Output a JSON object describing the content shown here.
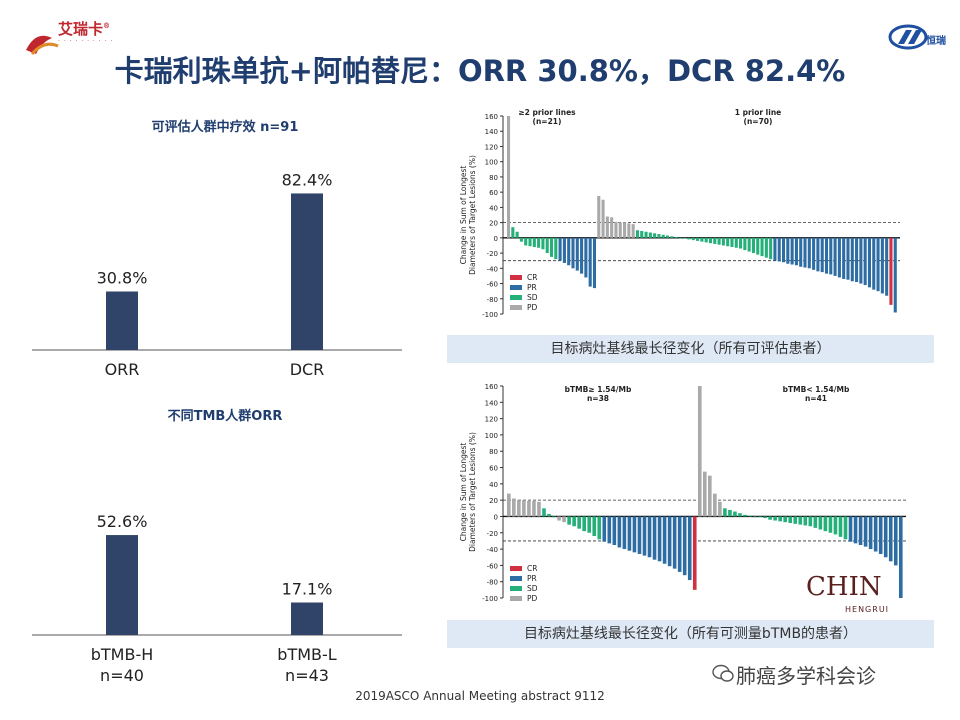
{
  "header": {
    "title": "卡瑞利珠单抗+阿帕替尼：ORR 30.8%，DCR 82.4%",
    "logo_left_text": "艾瑞卡",
    "logo_left_mark": "®",
    "logo_right_text": "恒瑞"
  },
  "colors": {
    "bar": "#2f4468",
    "cr": "#d03040",
    "pr": "#2e6da4",
    "sd": "#25b07a",
    "pd": "#a9a9a9",
    "title": "#1f3d6e"
  },
  "chart_data": [
    {
      "id": "orr_dcr",
      "type": "bar",
      "title": "可评估人群中疗效 n=91",
      "categories": [
        "ORR",
        "DCR"
      ],
      "values": [
        30.8,
        82.4
      ],
      "value_labels": [
        "30.8%",
        "82.4%"
      ],
      "ylim": [
        0,
        100
      ]
    },
    {
      "id": "tmb_orr",
      "type": "bar",
      "title": "不同TMB人群ORR",
      "categories": [
        "bTMB-H",
        "bTMB-L"
      ],
      "category_sublabels": [
        "n=40",
        "n=43"
      ],
      "values": [
        52.6,
        17.1
      ],
      "value_labels": [
        "52.6%",
        "17.1%"
      ],
      "ylim": [
        0,
        100
      ]
    },
    {
      "id": "waterfall_all",
      "type": "bar",
      "subtype": "waterfall",
      "ylabel": "Change in Sum of Longest Diameters of Target Lesions (%)",
      "ylim": [
        -100,
        160
      ],
      "yticks": [
        160,
        140,
        120,
        100,
        80,
        60,
        40,
        20,
        0,
        -20,
        -40,
        -60,
        -80,
        -100
      ],
      "reference_lines": [
        20,
        -30
      ],
      "groups": [
        {
          "label": "≥2 prior lines",
          "n_label": "(n=21)"
        },
        {
          "label": "1 prior line",
          "n_label": "(n=70)"
        }
      ],
      "legend": [
        "CR",
        "PR",
        "SD",
        "PD"
      ],
      "caption": "目标病灶基线最长径变化（所有可评估患者）",
      "group1": [
        {
          "v": 160,
          "c": "PD"
        },
        {
          "v": 14,
          "c": "SD"
        },
        {
          "v": 8,
          "c": "SD"
        },
        {
          "v": -5,
          "c": "SD"
        },
        {
          "v": -10,
          "c": "SD"
        },
        {
          "v": -11,
          "c": "SD"
        },
        {
          "v": -12,
          "c": "SD"
        },
        {
          "v": -13,
          "c": "SD"
        },
        {
          "v": -15,
          "c": "SD"
        },
        {
          "v": -20,
          "c": "SD"
        },
        {
          "v": -25,
          "c": "SD"
        },
        {
          "v": -28,
          "c": "SD"
        },
        {
          "v": -30,
          "c": "PR"
        },
        {
          "v": -33,
          "c": "PR"
        },
        {
          "v": -36,
          "c": "PR"
        },
        {
          "v": -40,
          "c": "PR"
        },
        {
          "v": -43,
          "c": "PR"
        },
        {
          "v": -47,
          "c": "PR"
        },
        {
          "v": -52,
          "c": "PR"
        },
        {
          "v": -64,
          "c": "PR"
        },
        {
          "v": -66,
          "c": "PR"
        }
      ],
      "group2": [
        {
          "v": 55,
          "c": "PD"
        },
        {
          "v": 50,
          "c": "PD"
        },
        {
          "v": 28,
          "c": "PD"
        },
        {
          "v": 27,
          "c": "PD"
        },
        {
          "v": 21,
          "c": "PD"
        },
        {
          "v": 20,
          "c": "PD"
        },
        {
          "v": 20,
          "c": "PD"
        },
        {
          "v": 19,
          "c": "PD"
        },
        {
          "v": 18,
          "c": "PD"
        },
        {
          "v": 10,
          "c": "SD"
        },
        {
          "v": 9,
          "c": "SD"
        },
        {
          "v": 8,
          "c": "SD"
        },
        {
          "v": 7,
          "c": "SD"
        },
        {
          "v": 6,
          "c": "SD"
        },
        {
          "v": 5,
          "c": "SD"
        },
        {
          "v": 4,
          "c": "SD"
        },
        {
          "v": 3,
          "c": "SD"
        },
        {
          "v": 2,
          "c": "SD"
        },
        {
          "v": 1,
          "c": "SD"
        },
        {
          "v": 0,
          "c": "SD"
        },
        {
          "v": -1,
          "c": "SD"
        },
        {
          "v": -2,
          "c": "SD"
        },
        {
          "v": -3,
          "c": "SD"
        },
        {
          "v": -4,
          "c": "SD"
        },
        {
          "v": -5,
          "c": "SD"
        },
        {
          "v": -6,
          "c": "SD"
        },
        {
          "v": -7,
          "c": "SD"
        },
        {
          "v": -8,
          "c": "SD"
        },
        {
          "v": -9,
          "c": "SD"
        },
        {
          "v": -10,
          "c": "SD"
        },
        {
          "v": -11,
          "c": "SD"
        },
        {
          "v": -12,
          "c": "SD"
        },
        {
          "v": -13,
          "c": "SD"
        },
        {
          "v": -14,
          "c": "SD"
        },
        {
          "v": -16,
          "c": "SD"
        },
        {
          "v": -18,
          "c": "SD"
        },
        {
          "v": -20,
          "c": "SD"
        },
        {
          "v": -22,
          "c": "SD"
        },
        {
          "v": -24,
          "c": "SD"
        },
        {
          "v": -26,
          "c": "SD"
        },
        {
          "v": -28,
          "c": "SD"
        },
        {
          "v": -30,
          "c": "PR"
        },
        {
          "v": -31,
          "c": "PR"
        },
        {
          "v": -32,
          "c": "PR"
        },
        {
          "v": -34,
          "c": "PR"
        },
        {
          "v": -35,
          "c": "PR"
        },
        {
          "v": -36,
          "c": "PR"
        },
        {
          "v": -38,
          "c": "PR"
        },
        {
          "v": -39,
          "c": "PR"
        },
        {
          "v": -40,
          "c": "PR"
        },
        {
          "v": -42,
          "c": "PR"
        },
        {
          "v": -44,
          "c": "PR"
        },
        {
          "v": -45,
          "c": "PR"
        },
        {
          "v": -47,
          "c": "PR"
        },
        {
          "v": -48,
          "c": "PR"
        },
        {
          "v": -50,
          "c": "PR"
        },
        {
          "v": -52,
          "c": "PR"
        },
        {
          "v": -54,
          "c": "PR"
        },
        {
          "v": -55,
          "c": "PR"
        },
        {
          "v": -57,
          "c": "PR"
        },
        {
          "v": -58,
          "c": "PR"
        },
        {
          "v": -60,
          "c": "PR"
        },
        {
          "v": -62,
          "c": "PR"
        },
        {
          "v": -65,
          "c": "PR"
        },
        {
          "v": -68,
          "c": "PR"
        },
        {
          "v": -70,
          "c": "PR"
        },
        {
          "v": -73,
          "c": "PR"
        },
        {
          "v": -76,
          "c": "PR"
        },
        {
          "v": -88,
          "c": "CR"
        },
        {
          "v": -98,
          "c": "PR"
        }
      ]
    },
    {
      "id": "waterfall_tmb",
      "type": "bar",
      "subtype": "waterfall",
      "ylabel": "Change in Sum of Longest Diameters of Target Lesions (%)",
      "ylim": [
        -100,
        160
      ],
      "yticks": [
        160,
        140,
        120,
        100,
        80,
        60,
        40,
        20,
        0,
        -20,
        -40,
        -60,
        -80,
        -100
      ],
      "reference_lines": [
        20,
        -30
      ],
      "groups": [
        {
          "label": "bTMB≥ 1.54/Mb",
          "n_label": "n=38"
        },
        {
          "label": "bTMB< 1.54/Mb",
          "n_label": "n=41"
        }
      ],
      "legend": [
        "CR",
        "PR",
        "SD",
        "PD"
      ],
      "caption": "目标病灶基线最长径变化（所有可测量bTMB的患者）",
      "group1": [
        {
          "v": 28,
          "c": "PD"
        },
        {
          "v": 22,
          "c": "PD"
        },
        {
          "v": 20,
          "c": "PD"
        },
        {
          "v": 20,
          "c": "PD"
        },
        {
          "v": 19,
          "c": "PD"
        },
        {
          "v": 19,
          "c": "PD"
        },
        {
          "v": 18,
          "c": "PD"
        },
        {
          "v": 10,
          "c": "SD"
        },
        {
          "v": 3,
          "c": "SD"
        },
        {
          "v": 0,
          "c": "SD"
        },
        {
          "v": -5,
          "c": "PD"
        },
        {
          "v": -7,
          "c": "PD"
        },
        {
          "v": -10,
          "c": "SD"
        },
        {
          "v": -12,
          "c": "SD"
        },
        {
          "v": -15,
          "c": "SD"
        },
        {
          "v": -18,
          "c": "SD"
        },
        {
          "v": -20,
          "c": "SD"
        },
        {
          "v": -24,
          "c": "SD"
        },
        {
          "v": -28,
          "c": "SD"
        },
        {
          "v": -31,
          "c": "PR"
        },
        {
          "v": -33,
          "c": "PR"
        },
        {
          "v": -35,
          "c": "PR"
        },
        {
          "v": -38,
          "c": "PR"
        },
        {
          "v": -40,
          "c": "PR"
        },
        {
          "v": -42,
          "c": "PR"
        },
        {
          "v": -44,
          "c": "PR"
        },
        {
          "v": -46,
          "c": "PR"
        },
        {
          "v": -48,
          "c": "PR"
        },
        {
          "v": -50,
          "c": "PR"
        },
        {
          "v": -53,
          "c": "PR"
        },
        {
          "v": -55,
          "c": "PR"
        },
        {
          "v": -58,
          "c": "PR"
        },
        {
          "v": -61,
          "c": "PR"
        },
        {
          "v": -64,
          "c": "PR"
        },
        {
          "v": -68,
          "c": "PR"
        },
        {
          "v": -72,
          "c": "PR"
        },
        {
          "v": -78,
          "c": "PR"
        },
        {
          "v": -90,
          "c": "CR"
        }
      ],
      "group2": [
        {
          "v": 160,
          "c": "PD"
        },
        {
          "v": 55,
          "c": "PD"
        },
        {
          "v": 50,
          "c": "PD"
        },
        {
          "v": 28,
          "c": "PD"
        },
        {
          "v": 18,
          "c": "PD"
        },
        {
          "v": 10,
          "c": "SD"
        },
        {
          "v": 8,
          "c": "SD"
        },
        {
          "v": 6,
          "c": "SD"
        },
        {
          "v": 4,
          "c": "SD"
        },
        {
          "v": 2,
          "c": "SD"
        },
        {
          "v": 1,
          "c": "SD"
        },
        {
          "v": 0,
          "c": "SD"
        },
        {
          "v": 0,
          "c": "SD"
        },
        {
          "v": -2,
          "c": "SD"
        },
        {
          "v": -4,
          "c": "SD"
        },
        {
          "v": -5,
          "c": "SD"
        },
        {
          "v": -6,
          "c": "SD"
        },
        {
          "v": -7,
          "c": "SD"
        },
        {
          "v": -8,
          "c": "SD"
        },
        {
          "v": -9,
          "c": "SD"
        },
        {
          "v": -10,
          "c": "SD"
        },
        {
          "v": -11,
          "c": "SD"
        },
        {
          "v": -12,
          "c": "SD"
        },
        {
          "v": -14,
          "c": "SD"
        },
        {
          "v": -16,
          "c": "SD"
        },
        {
          "v": -18,
          "c": "SD"
        },
        {
          "v": -20,
          "c": "SD"
        },
        {
          "v": -22,
          "c": "SD"
        },
        {
          "v": -25,
          "c": "SD"
        },
        {
          "v": -28,
          "c": "SD"
        },
        {
          "v": -31,
          "c": "PR"
        },
        {
          "v": -33,
          "c": "PR"
        },
        {
          "v": -35,
          "c": "PR"
        },
        {
          "v": -37,
          "c": "PR"
        },
        {
          "v": -40,
          "c": "PR"
        },
        {
          "v": -43,
          "c": "PR"
        },
        {
          "v": -46,
          "c": "PR"
        },
        {
          "v": -50,
          "c": "PR"
        },
        {
          "v": -55,
          "c": "PR"
        },
        {
          "v": -60,
          "c": "PR"
        },
        {
          "v": -100,
          "c": "PR"
        }
      ]
    }
  ],
  "footer": {
    "source": "2019ASCO Annual Meeting abstract 9112",
    "wechat": "肺癌多学科会诊",
    "watermark_text": "CHIN",
    "watermark_sub": "HENGRUI"
  }
}
